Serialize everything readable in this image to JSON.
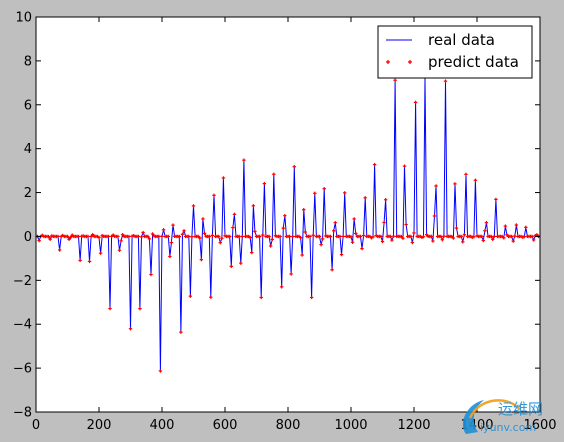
{
  "chart_data": {
    "type": "line",
    "title": "",
    "xlabel": "",
    "ylabel": "",
    "xlim": [
      0,
      1600
    ],
    "ylim": [
      -8,
      10
    ],
    "xticks": [
      "0",
      "200",
      "400",
      "600",
      "800",
      "1000",
      "1200",
      "1400",
      "1600"
    ],
    "yticks": [
      "−8",
      "−6",
      "−4",
      "−2",
      "0",
      "2",
      "4",
      "6",
      "8",
      "10"
    ],
    "grid": false,
    "legend_position": "top-right",
    "series": [
      {
        "name": "real data",
        "style": "line",
        "color": "#0000ff",
        "x_range": [
          0,
          1600
        ],
        "sample_step": 5,
        "peak_spacing": 32,
        "envelope": [
          [
            0,
            -0.3
          ],
          [
            60,
            -0.5
          ],
          [
            120,
            -1.0
          ],
          [
            180,
            -2.2
          ],
          [
            230,
            -3.2
          ],
          [
            270,
            -4.3
          ],
          [
            300,
            -5.4
          ],
          [
            340,
            -5.9
          ],
          [
            380,
            -6.3
          ],
          [
            420,
            -6.1
          ],
          [
            460,
            -5.6
          ],
          [
            500,
            -4.5
          ],
          [
            540,
            -3.3
          ],
          [
            580,
            -2.0
          ],
          [
            600,
            -1.5
          ],
          [
            640,
            -2.0
          ],
          [
            700,
            -2.8
          ],
          [
            760,
            -2.9
          ],
          [
            800,
            -3.0
          ],
          [
            860,
            -3.0
          ],
          [
            920,
            -2.3
          ],
          [
            960,
            -1.6
          ],
          [
            1000,
            -1.0
          ],
          [
            1040,
            -0.5
          ],
          [
            1100,
            -0.3
          ],
          [
            1600,
            -0.2
          ]
        ],
        "upper": [
          [
            0,
            0.05
          ],
          [
            150,
            0.08
          ],
          [
            300,
            0.1
          ],
          [
            350,
            0.2
          ],
          [
            420,
            0.5
          ],
          [
            480,
            1.0
          ],
          [
            540,
            2.2
          ],
          [
            580,
            3.0
          ],
          [
            620,
            3.6
          ],
          [
            660,
            3.5
          ],
          [
            700,
            3.5
          ],
          [
            780,
            3.4
          ],
          [
            860,
            3.0
          ],
          [
            920,
            2.6
          ],
          [
            960,
            2.1
          ],
          [
            1000,
            1.9
          ],
          [
            1040,
            2.3
          ],
          [
            1080,
            4.2
          ],
          [
            1120,
            6.5
          ],
          [
            1150,
            7.5
          ],
          [
            1200,
            8.8
          ],
          [
            1250,
            8.8
          ],
          [
            1290,
            7.5
          ],
          [
            1330,
            6.0
          ],
          [
            1370,
            3.8
          ],
          [
            1420,
            2.4
          ],
          [
            1460,
            1.7
          ],
          [
            1500,
            1.0
          ],
          [
            1540,
            0.6
          ],
          [
            1600,
            0.2
          ]
        ]
      },
      {
        "name": "predict data",
        "style": "markers",
        "marker": "+",
        "color": "#ff0000",
        "x_range": [
          0,
          1600
        ],
        "sample_step": 5
      }
    ]
  },
  "watermark": {
    "name": "运维网",
    "domain": "iyunv.com"
  }
}
